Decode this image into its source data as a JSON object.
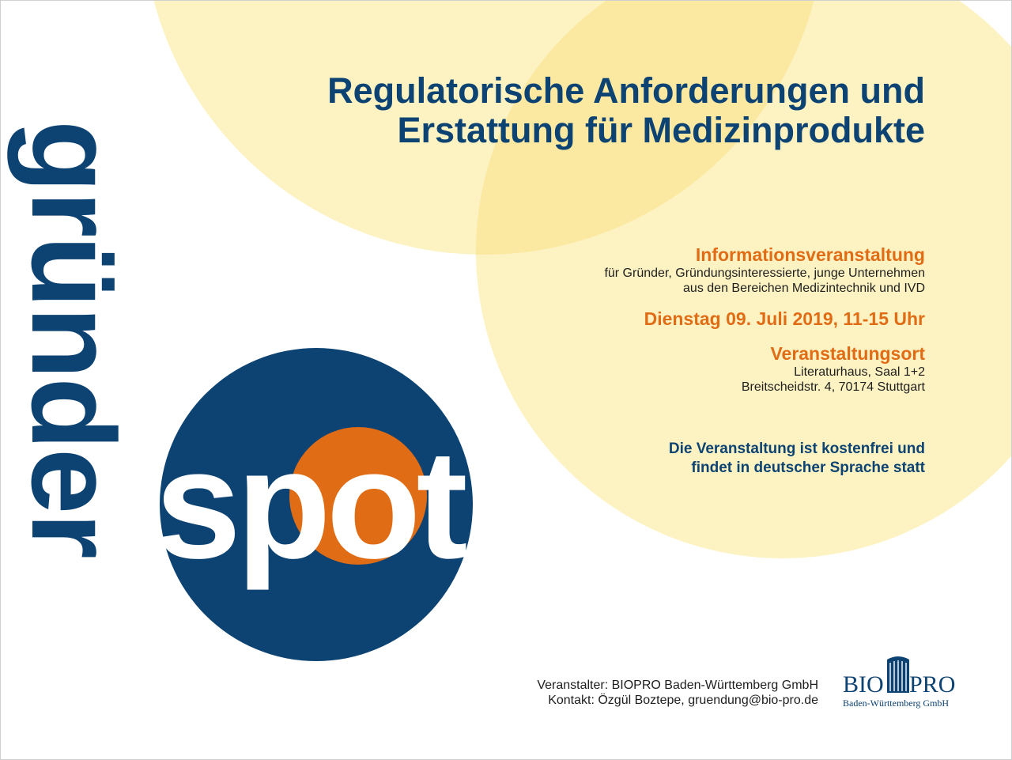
{
  "brand": {
    "vertical_word": "gründer",
    "spot_word": "spot",
    "colors": {
      "blue": "#0d4373",
      "orange": "#e06c16",
      "yellow_light": "#fdf3c2",
      "yellow_mid": "#fbeca8"
    }
  },
  "title": {
    "line1": "Regulatorische Anforderungen und",
    "line2": "Erstattung für Medizinprodukte"
  },
  "event": {
    "type_heading": "Informationsveranstaltung",
    "audience_line1": "für Gründer, Gründungsinteressierte, junge Unternehmen",
    "audience_line2": "aus den Bereichen Medizintechnik und IVD",
    "date": "Dienstag 09. Juli 2019, 11-15 Uhr",
    "venue_heading": "Veranstaltungsort",
    "venue_line1": "Literaturhaus, Saal 1+2",
    "venue_line2": "Breitscheidstr. 4, 70174 Stuttgart",
    "note_line1": "Die Veranstaltung ist kostenfrei und",
    "note_line2": "findet in deutscher Sprache statt"
  },
  "footer": {
    "organizer": "Veranstalter: BIOPRO Baden-Württemberg GmbH",
    "contact": "Kontakt: Özgül Boztepe, gruendung@bio-pro.de"
  },
  "logo": {
    "part1": "BIO",
    "part2": "PRO",
    "subtitle": "Baden-Württemberg GmbH",
    "icon": "biopro-logo-icon"
  }
}
